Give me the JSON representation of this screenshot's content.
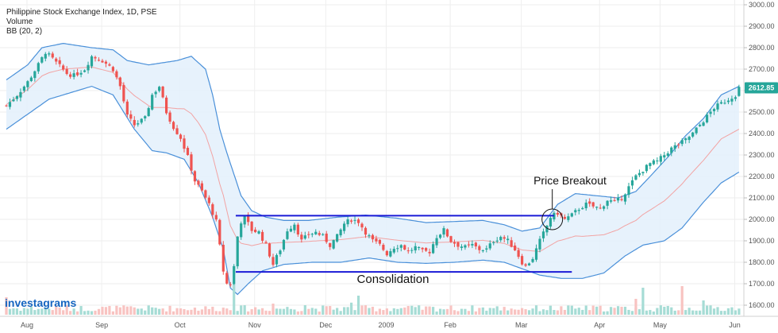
{
  "chart_data": {
    "type": "candlestick",
    "header": {
      "title": "Philippine Stock Exchange Index, 1D, PSE",
      "volume_label": "Volume",
      "bb_label": "BB (20, 2)"
    },
    "y_range": [
      1600,
      3000
    ],
    "y_ticks": [
      {
        "value": 3000,
        "label": "3000.00"
      },
      {
        "value": 2900,
        "label": "2900.00"
      },
      {
        "value": 2800,
        "label": "2800.00"
      },
      {
        "value": 2700,
        "label": "2700.00"
      },
      {
        "value": 2600,
        "label": "2600.00"
      },
      {
        "value": 2500,
        "label": "2500.00"
      },
      {
        "value": 2400,
        "label": "2400.00"
      },
      {
        "value": 2300,
        "label": "2300.00"
      },
      {
        "value": 2200,
        "label": "2200.00"
      },
      {
        "value": 2100,
        "label": "2100.00"
      },
      {
        "value": 2000,
        "label": "2000.00"
      },
      {
        "value": 1900,
        "label": "1900.00"
      },
      {
        "value": 1800,
        "label": "1800.00"
      },
      {
        "value": 1700,
        "label": "1700.00"
      },
      {
        "value": 1600,
        "label": "1600.00"
      }
    ],
    "x_ticks": [
      {
        "label": "Aug",
        "day": 0
      },
      {
        "label": "Sep",
        "day": 21
      },
      {
        "label": "Oct",
        "day": 43
      },
      {
        "label": "Nov",
        "day": 64
      },
      {
        "label": "Dec",
        "day": 84
      },
      {
        "label": "2009",
        "day": 101
      },
      {
        "label": "Feb",
        "day": 119
      },
      {
        "label": "Mar",
        "day": 139
      },
      {
        "label": "Apr",
        "day": 161
      },
      {
        "label": "May",
        "day": 178
      },
      {
        "label": "Jun",
        "day": 199
      }
    ],
    "last_price": {
      "value": 2612.85,
      "label": "2612.85",
      "color": "#26a69a"
    },
    "colors": {
      "up": "#26a69a",
      "down": "#ef5350",
      "band_line": "#4a90d9",
      "band_fill": "#e3f0fb",
      "basis": "#f2a3a3",
      "level_lines": "#1a1ad6",
      "grid": "#eeeeee",
      "vol_up": "#a6dcd5",
      "vol_down": "#f8c3c1"
    },
    "close_points": [
      [
        0,
        2530
      ],
      [
        3,
        2580
      ],
      [
        6,
        2640
      ],
      [
        9,
        2720
      ],
      [
        11,
        2780
      ],
      [
        14,
        2730
      ],
      [
        17,
        2680
      ],
      [
        19,
        2670
      ],
      [
        22,
        2700
      ],
      [
        24,
        2760
      ],
      [
        27,
        2740
      ],
      [
        30,
        2700
      ],
      [
        32,
        2620
      ],
      [
        34,
        2480
      ],
      [
        36,
        2440
      ],
      [
        39,
        2470
      ],
      [
        41,
        2580
      ],
      [
        43,
        2620
      ],
      [
        45,
        2500
      ],
      [
        47,
        2430
      ],
      [
        49,
        2380
      ],
      [
        51,
        2290
      ],
      [
        53,
        2180
      ],
      [
        55,
        2130
      ],
      [
        57,
        2070
      ],
      [
        59,
        1990
      ],
      [
        61,
        1760
      ],
      [
        62,
        1700
      ],
      [
        63,
        1700
      ],
      [
        64,
        1780
      ],
      [
        65,
        1920
      ],
      [
        66,
        1990
      ],
      [
        67,
        2010
      ],
      [
        69,
        1950
      ],
      [
        71,
        1940
      ],
      [
        73,
        1880
      ],
      [
        75,
        1790
      ],
      [
        77,
        1860
      ],
      [
        79,
        1950
      ],
      [
        81,
        1980
      ],
      [
        83,
        1900
      ],
      [
        85,
        1930
      ],
      [
        87,
        1940
      ],
      [
        89,
        1920
      ],
      [
        91,
        1880
      ],
      [
        93,
        1920
      ],
      [
        95,
        1980
      ],
      [
        97,
        2000
      ],
      [
        99,
        1990
      ],
      [
        101,
        1940
      ],
      [
        103,
        1900
      ],
      [
        105,
        1880
      ],
      [
        107,
        1840
      ],
      [
        109,
        1870
      ],
      [
        111,
        1880
      ],
      [
        113,
        1850
      ],
      [
        115,
        1870
      ],
      [
        117,
        1850
      ],
      [
        119,
        1850
      ],
      [
        121,
        1920
      ],
      [
        123,
        1950
      ],
      [
        125,
        1900
      ],
      [
        127,
        1880
      ],
      [
        129,
        1870
      ],
      [
        131,
        1880
      ],
      [
        133,
        1860
      ],
      [
        135,
        1860
      ],
      [
        137,
        1900
      ],
      [
        139,
        1920
      ],
      [
        141,
        1900
      ],
      [
        143,
        1860
      ],
      [
        145,
        1800
      ],
      [
        146,
        1780
      ],
      [
        148,
        1820
      ],
      [
        150,
        1900
      ],
      [
        152,
        1970
      ],
      [
        153,
        2010
      ],
      [
        155,
        2030
      ],
      [
        157,
        2000
      ],
      [
        159,
        2020
      ],
      [
        161,
        2050
      ],
      [
        163,
        2070
      ],
      [
        165,
        2060
      ],
      [
        167,
        2050
      ],
      [
        169,
        2090
      ],
      [
        171,
        2080
      ],
      [
        173,
        2100
      ],
      [
        175,
        2150
      ],
      [
        177,
        2200
      ],
      [
        179,
        2230
      ],
      [
        181,
        2260
      ],
      [
        183,
        2270
      ],
      [
        185,
        2300
      ],
      [
        187,
        2330
      ],
      [
        189,
        2350
      ],
      [
        191,
        2370
      ],
      [
        193,
        2400
      ],
      [
        195,
        2440
      ],
      [
        197,
        2480
      ],
      [
        199,
        2520
      ],
      [
        201,
        2540
      ],
      [
        203,
        2560
      ],
      [
        205,
        2580
      ],
      [
        206,
        2612.85
      ]
    ],
    "band_upper_points": [
      [
        0,
        2650
      ],
      [
        6,
        2720
      ],
      [
        10,
        2800
      ],
      [
        16,
        2820
      ],
      [
        24,
        2800
      ],
      [
        30,
        2790
      ],
      [
        34,
        2740
      ],
      [
        40,
        2720
      ],
      [
        44,
        2730
      ],
      [
        48,
        2740
      ],
      [
        52,
        2760
      ],
      [
        56,
        2700
      ],
      [
        58,
        2580
      ],
      [
        60,
        2420
      ],
      [
        62,
        2310
      ],
      [
        64,
        2210
      ],
      [
        66,
        2110
      ],
      [
        69,
        2040
      ],
      [
        73,
        2010
      ],
      [
        78,
        1995
      ],
      [
        85,
        1995
      ],
      [
        93,
        2010
      ],
      [
        101,
        2020
      ],
      [
        110,
        2005
      ],
      [
        118,
        1985
      ],
      [
        126,
        1990
      ],
      [
        134,
        1995
      ],
      [
        140,
        1975
      ],
      [
        145,
        1945
      ],
      [
        150,
        1960
      ],
      [
        155,
        2070
      ],
      [
        160,
        2120
      ],
      [
        166,
        2110
      ],
      [
        172,
        2100
      ],
      [
        177,
        2130
      ],
      [
        181,
        2200
      ],
      [
        186,
        2290
      ],
      [
        191,
        2390
      ],
      [
        196,
        2470
      ],
      [
        201,
        2580
      ],
      [
        206,
        2620
      ]
    ],
    "band_lower_points": [
      [
        0,
        2420
      ],
      [
        6,
        2490
      ],
      [
        12,
        2560
      ],
      [
        18,
        2590
      ],
      [
        24,
        2620
      ],
      [
        30,
        2580
      ],
      [
        36,
        2420
      ],
      [
        41,
        2320
      ],
      [
        45,
        2310
      ],
      [
        50,
        2280
      ],
      [
        54,
        2170
      ],
      [
        58,
        2010
      ],
      [
        61,
        1860
      ],
      [
        63,
        1680
      ],
      [
        65,
        1650
      ],
      [
        68,
        1700
      ],
      [
        72,
        1760
      ],
      [
        78,
        1790
      ],
      [
        86,
        1800
      ],
      [
        94,
        1800
      ],
      [
        102,
        1820
      ],
      [
        110,
        1800
      ],
      [
        118,
        1795
      ],
      [
        126,
        1800
      ],
      [
        134,
        1810
      ],
      [
        140,
        1800
      ],
      [
        145,
        1770
      ],
      [
        150,
        1740
      ],
      [
        156,
        1725
      ],
      [
        162,
        1725
      ],
      [
        168,
        1750
      ],
      [
        174,
        1830
      ],
      [
        179,
        1880
      ],
      [
        185,
        1900
      ],
      [
        190,
        1960
      ],
      [
        196,
        2080
      ],
      [
        201,
        2170
      ],
      [
        206,
        2220
      ]
    ],
    "annotations": {
      "resistance": {
        "value": 2017,
        "day_start": 64.5,
        "day_end": 154
      },
      "support": {
        "value": 1755,
        "day_start": 64.5,
        "day_end": 159
      },
      "breakout_circle": {
        "day": 153.5,
        "value": 2000
      },
      "breakout_label": "Price Breakout",
      "consolidation_label": "Consolidation"
    },
    "volume_spikes": [
      {
        "day": 0,
        "height": 0.55,
        "up": false
      },
      {
        "day": 64,
        "height": 0.95,
        "up": true
      },
      {
        "day": 75,
        "height": 0.35,
        "up": false
      },
      {
        "day": 84,
        "height": 0.3,
        "up": true
      },
      {
        "day": 99,
        "height": 0.6,
        "up": true
      },
      {
        "day": 97,
        "height": 0.38,
        "up": true
      },
      {
        "day": 153,
        "height": 0.28,
        "up": true
      },
      {
        "day": 179,
        "height": 0.85,
        "up": true
      },
      {
        "day": 177,
        "height": 0.5,
        "up": false
      },
      {
        "day": 190,
        "height": 0.9,
        "up": false
      },
      {
        "day": 196,
        "height": 0.45,
        "up": true
      }
    ],
    "logo_text": "investagrams"
  }
}
